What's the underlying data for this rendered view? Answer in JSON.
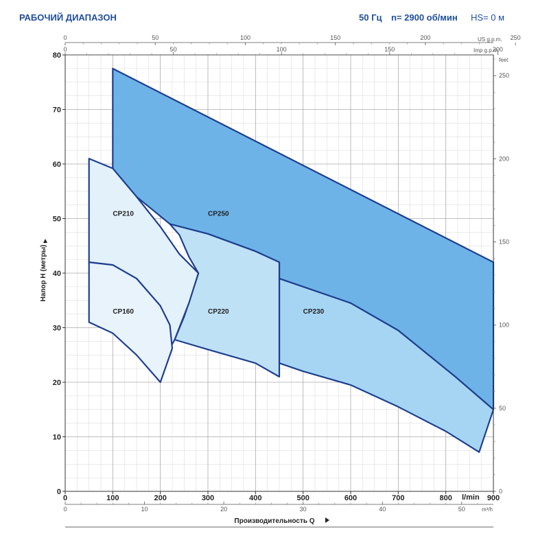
{
  "header": {
    "title": "РАБОЧИЙ ДИАПАЗОН",
    "frequency": "50 Гц",
    "speed": "n= 2900 об/мин",
    "suction_head": "HS= 0 м"
  },
  "chart_data": {
    "type": "area",
    "xlabel": "Производительность Q",
    "ylabel": "Напор H (метры)",
    "xunit": "l/min",
    "secondary_units": {
      "top1": "US g.p.m.",
      "top2": "Imp g.p.m.",
      "bottom": "m³/h",
      "right": "feet"
    },
    "xlim": [
      0,
      900
    ],
    "ylim": [
      0,
      80
    ],
    "x_ticks": [
      0,
      100,
      200,
      300,
      400,
      500,
      600,
      700,
      800,
      900
    ],
    "y_ticks": [
      0,
      10,
      20,
      30,
      40,
      50,
      60,
      70,
      80
    ],
    "us_gpm_ticks": [
      0,
      50,
      100,
      150,
      200,
      250
    ],
    "imp_gpm_ticks": [
      0,
      50,
      100,
      150,
      200
    ],
    "m3h_ticks": [
      0,
      10,
      20,
      30,
      40,
      50
    ],
    "feet_ticks": [
      0,
      50,
      100,
      150,
      200,
      250
    ],
    "grid": true,
    "series": [
      {
        "name": "CP250",
        "color": "#6db3e8",
        "label_at": [
          300,
          50.5
        ],
        "polygon": [
          [
            100,
            77.5
          ],
          [
            900,
            42
          ],
          [
            900,
            15
          ],
          [
            820,
            21
          ],
          [
            700,
            29.5
          ],
          [
            600,
            34.5
          ],
          [
            450,
            39
          ],
          [
            450,
            42
          ],
          [
            400,
            44
          ],
          [
            300,
            47.2
          ],
          [
            220,
            49
          ],
          [
            150,
            54
          ],
          [
            100,
            59.2
          ]
        ]
      },
      {
        "name": "CP230",
        "color": "#a6d5f3",
        "label_at": [
          500,
          32.6
        ],
        "polygon": [
          [
            450,
            39
          ],
          [
            600,
            34.5
          ],
          [
            700,
            29.5
          ],
          [
            820,
            21
          ],
          [
            900,
            15
          ],
          [
            870,
            7.2
          ],
          [
            800,
            11
          ],
          [
            700,
            15.5
          ],
          [
            600,
            19.5
          ],
          [
            500,
            22
          ],
          [
            450,
            23.5
          ]
        ]
      },
      {
        "name": "CP220",
        "color": "#bfe1f6",
        "label_at": [
          300,
          32.6
        ],
        "polygon": [
          [
            220,
            49
          ],
          [
            300,
            47.2
          ],
          [
            400,
            44
          ],
          [
            450,
            42
          ],
          [
            450,
            21
          ],
          [
            400,
            23.5
          ],
          [
            300,
            26
          ],
          [
            230,
            27.8
          ],
          [
            250,
            32
          ],
          [
            280,
            40
          ],
          [
            260,
            43
          ],
          [
            240,
            47
          ]
        ]
      },
      {
        "name": "CP210",
        "color": "#e3f1fb",
        "label_at": [
          100,
          50.5
        ],
        "polygon": [
          [
            50,
            61
          ],
          [
            100,
            59.2
          ],
          [
            150,
            54
          ],
          [
            200,
            48.5
          ],
          [
            240,
            43.5
          ],
          [
            280,
            40
          ],
          [
            260,
            34.5
          ],
          [
            230,
            27.8
          ],
          [
            220,
            26.2
          ],
          [
            200,
            34
          ],
          [
            150,
            39
          ],
          [
            100,
            41.5
          ],
          [
            50,
            42
          ]
        ]
      },
      {
        "name": "CP160",
        "color": "#e8f3fc",
        "label_at": [
          100,
          32.6
        ],
        "polygon": [
          [
            50,
            42
          ],
          [
            100,
            41.5
          ],
          [
            150,
            39
          ],
          [
            200,
            34
          ],
          [
            220,
            30.5
          ],
          [
            225,
            26.2
          ],
          [
            200,
            20
          ],
          [
            150,
            25
          ],
          [
            100,
            29
          ],
          [
            50,
            31
          ]
        ]
      }
    ]
  }
}
